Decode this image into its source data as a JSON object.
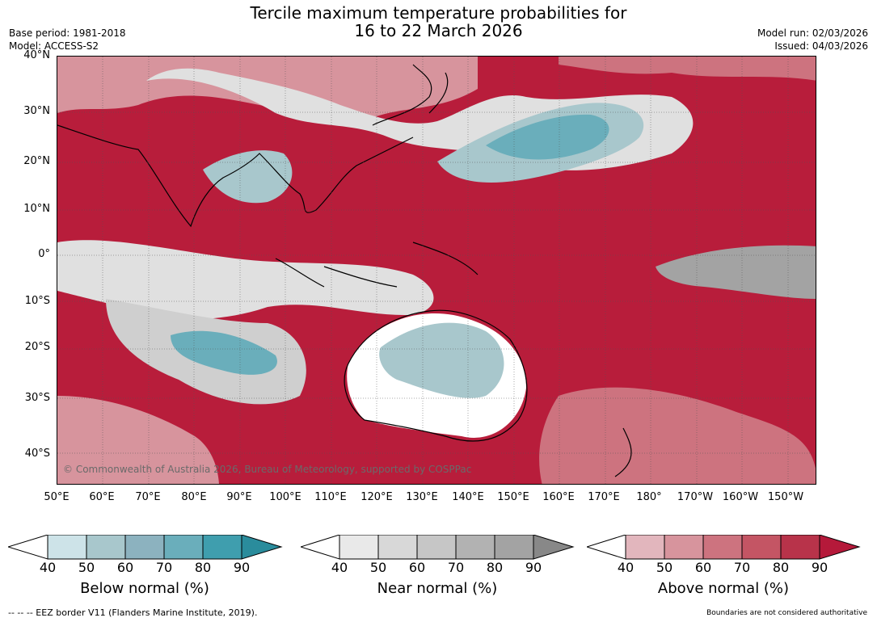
{
  "header": {
    "title_line1": "Tercile maximum temperature probabilities for",
    "title_line2": "16 to 22 March 2026",
    "base_period": "Base period: 1981-2018",
    "model": "Model: ACCESS-S2",
    "model_run": "Model run: 02/03/2026",
    "issued": "Issued: 04/03/2026"
  },
  "map": {
    "lat_labels": [
      "40°N",
      "30°N",
      "20°N",
      "10°N",
      "0°",
      "10°S",
      "20°S",
      "30°S",
      "40°S"
    ],
    "lon_labels": [
      "50°E",
      "60°E",
      "70°E",
      "80°E",
      "90°E",
      "100°E",
      "110°E",
      "120°E",
      "130°E",
      "140°E",
      "150°E",
      "160°E",
      "170°E",
      "180°",
      "170°W",
      "160°W",
      "150°W"
    ],
    "copyright": "© Commonwealth of Australia 2026, Bureau of Meteorology, supported by COSPPac"
  },
  "legend": {
    "below_title": "Below normal (%)",
    "near_title": "Near normal (%)",
    "above_title": "Above normal (%)",
    "ticks": [
      "40",
      "50",
      "60",
      "70",
      "80",
      "90"
    ],
    "below_colors": [
      "#cde3e8",
      "#a8c7cc",
      "#8cb2bf",
      "#6aaebb",
      "#3f9eae",
      "#2a8c9c"
    ],
    "near_colors": [
      "#e9e9e9",
      "#d8d8d8",
      "#c6c6c6",
      "#b2b2b2",
      "#a3a3a3",
      "#888888"
    ],
    "above_colors": [
      "#e2b6bd",
      "#d7949d",
      "#cd737f",
      "#c45564",
      "#b8334a",
      "#b5193a"
    ]
  },
  "footer": {
    "eez_note": "--  --  -- EEZ border V11 (Flanders Marine Institute, 2019).",
    "boundaries_note": "Boundaries are not considered authoritative"
  }
}
